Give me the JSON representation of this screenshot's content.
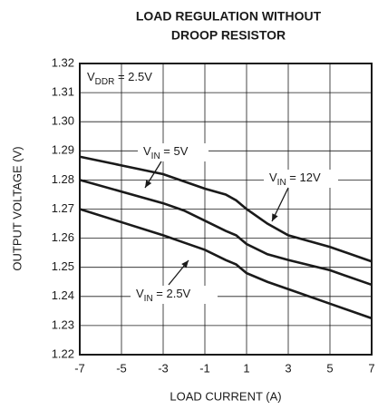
{
  "chart_data": {
    "type": "line",
    "title": [
      "LOAD REGULATION WITHOUT",
      "DROOP RESISTOR"
    ],
    "xlabel": "LOAD CURRENT (A)",
    "ylabel": "OUTPUT VOLTAGE (V)",
    "x": [
      -7,
      -5,
      -3,
      -2,
      -1,
      0,
      0.5,
      1,
      2,
      3,
      5,
      7
    ],
    "series": [
      {
        "color": "#1a1a1a",
        "values": [
          1.288,
          1.285,
          1.282,
          1.2795,
          1.277,
          1.275,
          1.273,
          1.27,
          1.265,
          1.261,
          1.257,
          1.252
        ]
      },
      {
        "color": "#1a1a1a",
        "values": [
          1.28,
          1.276,
          1.272,
          1.2695,
          1.266,
          1.2625,
          1.261,
          1.258,
          1.2545,
          1.2525,
          1.249,
          1.244
        ]
      },
      {
        "color": "#1a1a1a",
        "values": [
          1.27,
          1.2655,
          1.261,
          1.2585,
          1.256,
          1.2525,
          1.251,
          1.248,
          1.245,
          1.2425,
          1.2375,
          1.2325
        ]
      }
    ],
    "annotations": [
      {
        "main": "V",
        "sub": "DDR",
        "rest": " = 2.5V"
      },
      {
        "main": "V",
        "sub": "IN",
        "rest": " = 5V"
      },
      {
        "main": "V",
        "sub": "IN",
        "rest": " = 12V"
      },
      {
        "main": "V",
        "sub": "IN",
        "rest": " = 2.5V"
      }
    ],
    "xlim": [
      -7,
      7
    ],
    "xticks": [
      -7,
      -5,
      -3,
      -1,
      1,
      3,
      5,
      7
    ],
    "ylim": [
      1.22,
      1.32
    ],
    "yticks": [
      1.22,
      1.23,
      1.24,
      1.25,
      1.26,
      1.27,
      1.28,
      1.29,
      {
        "value": 1.3,
        "label": "1.30"
      },
      1.31,
      1.32
    ],
    "grid": true
  }
}
